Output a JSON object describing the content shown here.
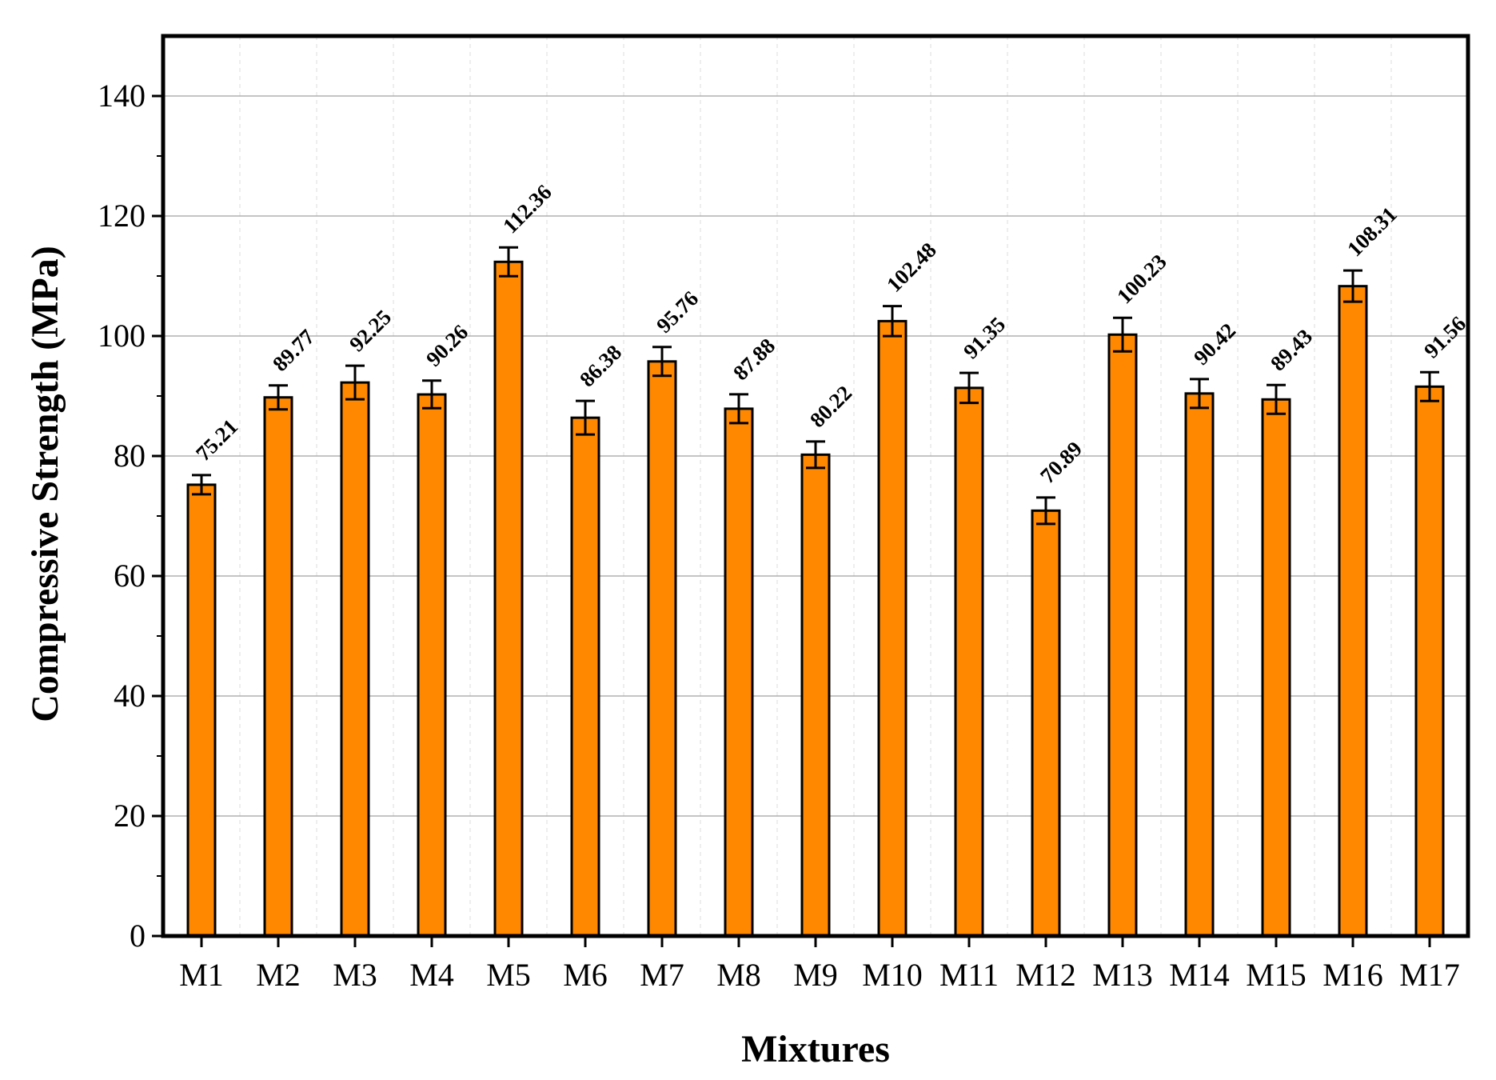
{
  "chart_data": {
    "type": "bar",
    "categories": [
      "M1",
      "M2",
      "M3",
      "M4",
      "M5",
      "M6",
      "M7",
      "M8",
      "M9",
      "M10",
      "M11",
      "M12",
      "M13",
      "M14",
      "M15",
      "M16",
      "M17"
    ],
    "values": [
      75.21,
      89.77,
      92.25,
      90.26,
      112.36,
      86.38,
      95.76,
      87.88,
      80.22,
      102.48,
      91.35,
      70.89,
      100.23,
      90.42,
      89.43,
      108.31,
      91.56
    ],
    "value_labels": [
      "75.21",
      "89.77",
      "92.25",
      "90.26",
      "112.36",
      "86.38",
      "95.76",
      "87.88",
      "80.22",
      "102.48",
      "91.35",
      "70.89",
      "100.23",
      "90.42",
      "89.43",
      "108.31",
      "91.56"
    ],
    "error": [
      1.6,
      2.0,
      2.8,
      2.3,
      2.4,
      2.8,
      2.4,
      2.4,
      2.2,
      2.5,
      2.5,
      2.2,
      2.8,
      2.4,
      2.4,
      2.6,
      2.4
    ],
    "xlabel": "Mixtures",
    "ylabel": "Compressive Strength (MPa)",
    "ylim": [
      0,
      150
    ],
    "yticks": [
      0,
      20,
      40,
      60,
      80,
      100,
      120,
      140
    ],
    "ytick_labels": [
      "0",
      "20",
      "40",
      "60",
      "80",
      "100",
      "120",
      "140"
    ],
    "grid": true,
    "colors": {
      "bar": "#FF8800",
      "bar_edge": "#000000",
      "grid": "#b0b0b0",
      "grid_minor": "#dddddd",
      "frame": "#000000"
    }
  }
}
